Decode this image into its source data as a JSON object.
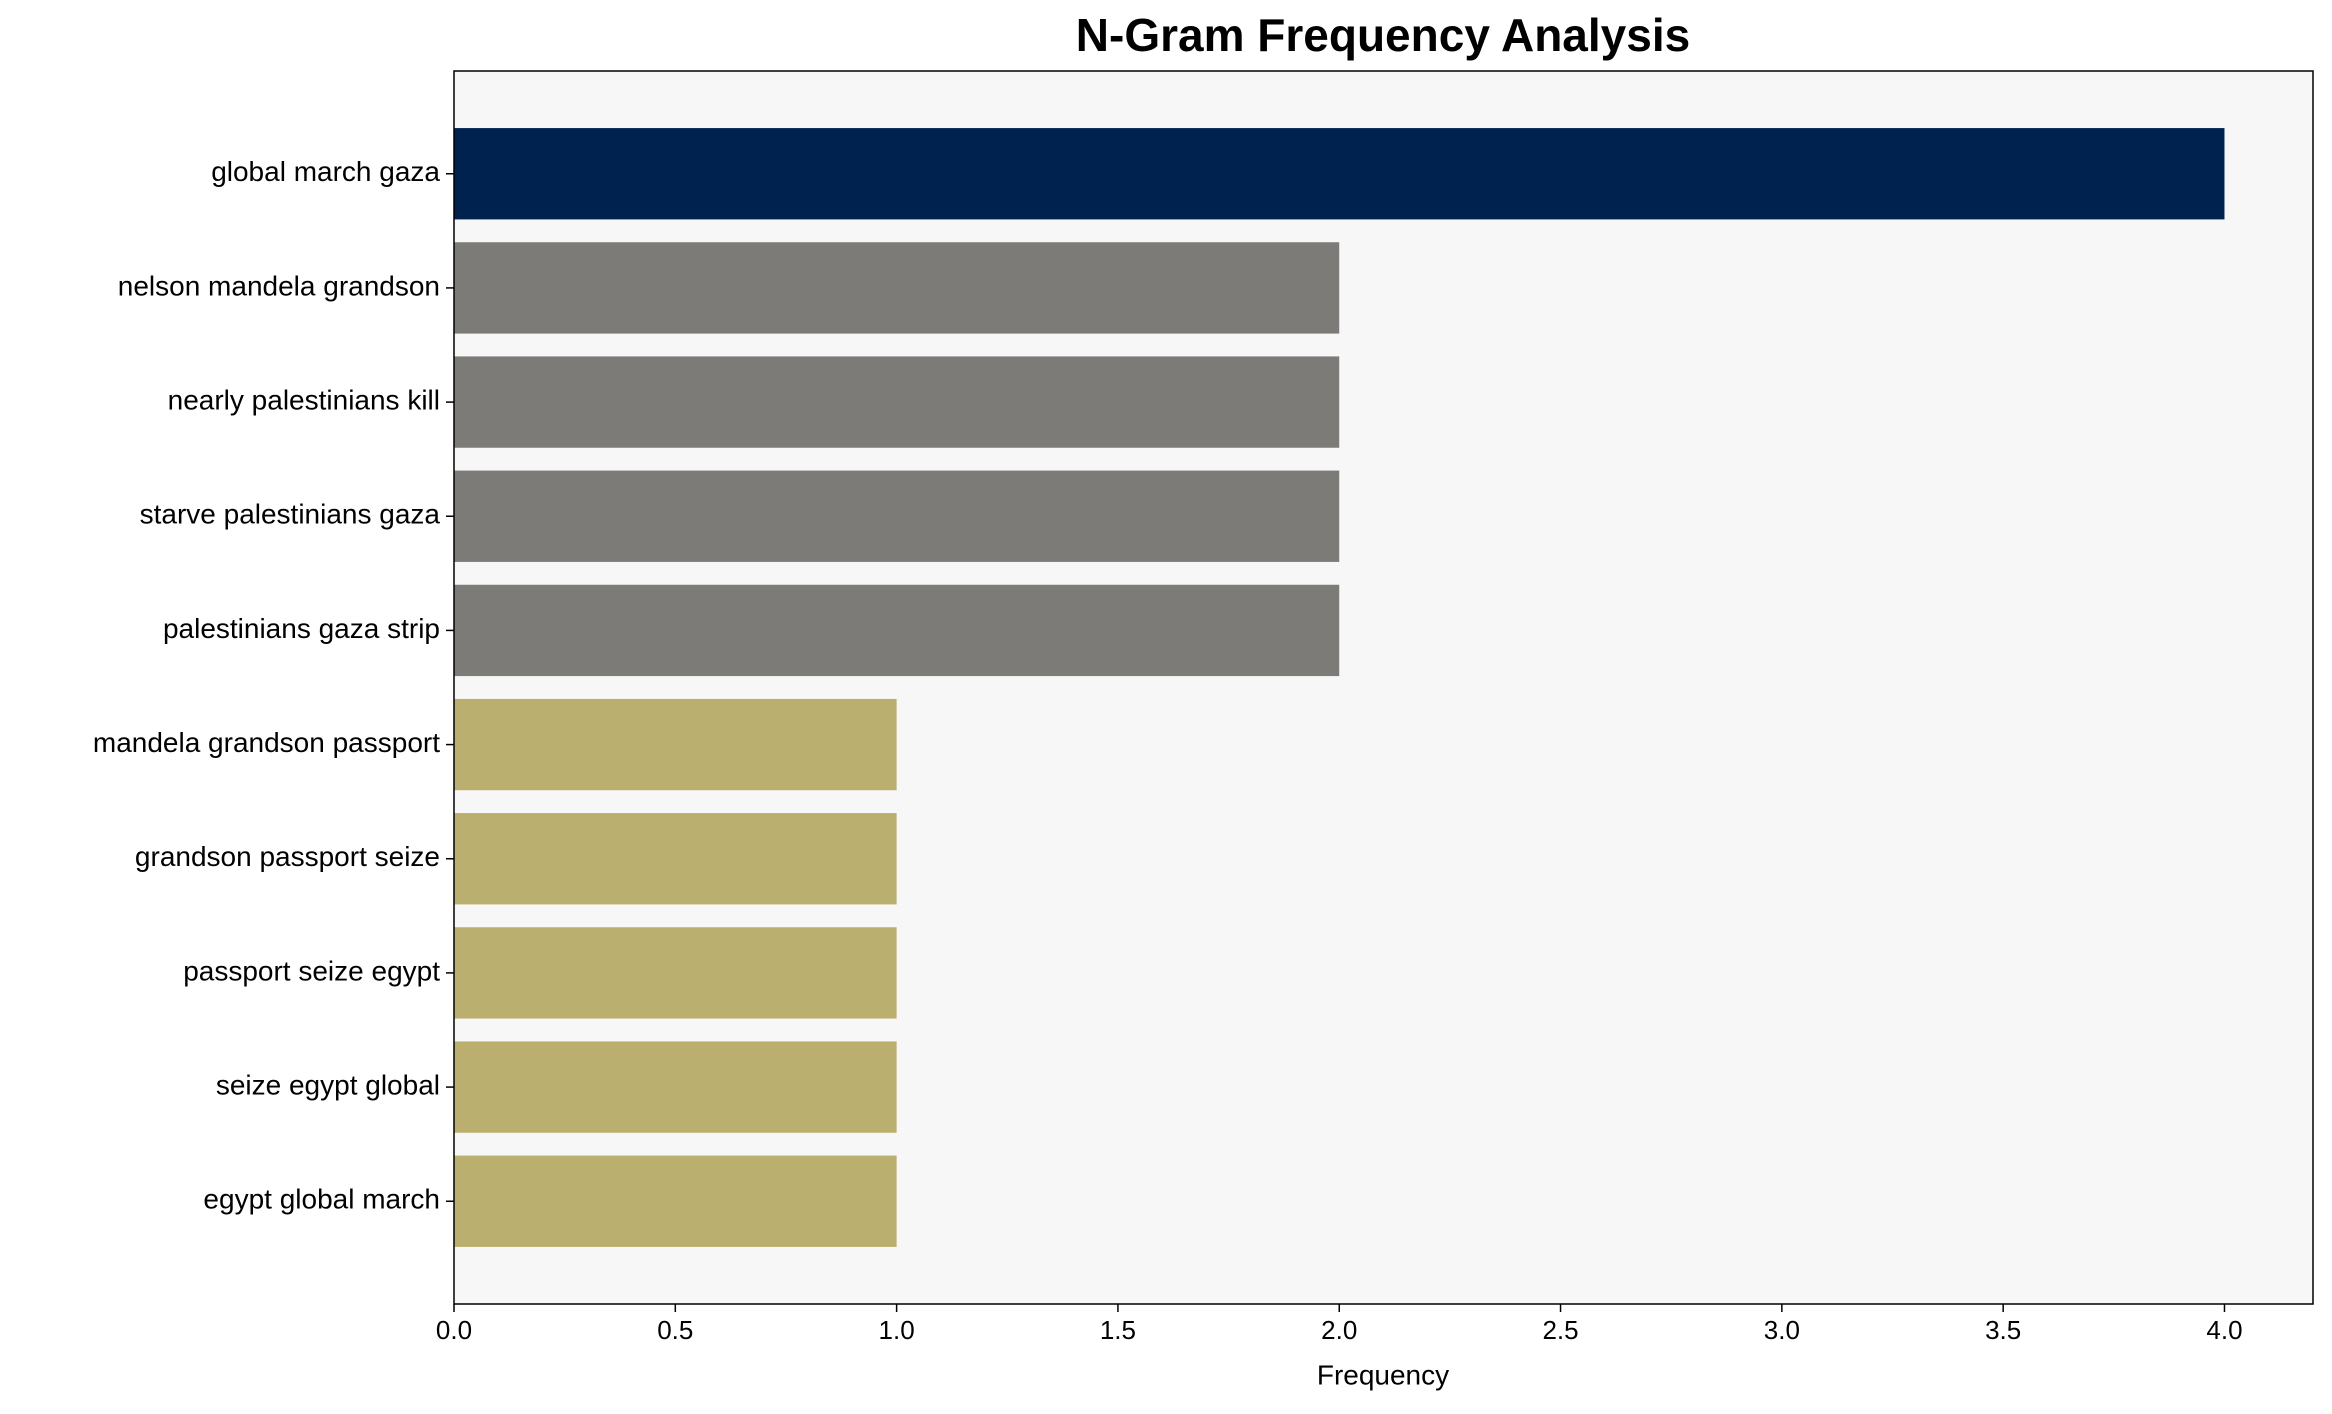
{
  "chart_data": {
    "type": "barh",
    "title": "N-Gram Frequency Analysis",
    "x_label": "Frequency",
    "categories": [
      "global march gaza",
      "nelson mandela grandson",
      "nearly palestinians kill",
      "starve palestinians gaza",
      "palestinians gaza strip",
      "mandela grandson passport",
      "grandson passport seize",
      "passport seize egypt",
      "seize egypt global",
      "egypt global march"
    ],
    "values": [
      4,
      2,
      2,
      2,
      2,
      1,
      1,
      1,
      1,
      1
    ],
    "colors": [
      "#00224e",
      "#7c7b78",
      "#7c7b78",
      "#7c7b78",
      "#7c7b78",
      "#bbaf6f",
      "#bbaf6f",
      "#bbaf6f",
      "#bbaf6f",
      "#bbaf6f"
    ],
    "xlim": [
      0,
      4.2
    ],
    "xticks": [
      {
        "value": 0,
        "label": "0.0"
      },
      0.5,
      {
        "value": 1,
        "label": "1.0"
      },
      1.5,
      {
        "value": 2,
        "label": "2.0"
      },
      2.5,
      {
        "value": 3,
        "label": "3.0"
      },
      3.5,
      {
        "value": 4,
        "label": "4.0"
      }
    ],
    "grid": false
  }
}
